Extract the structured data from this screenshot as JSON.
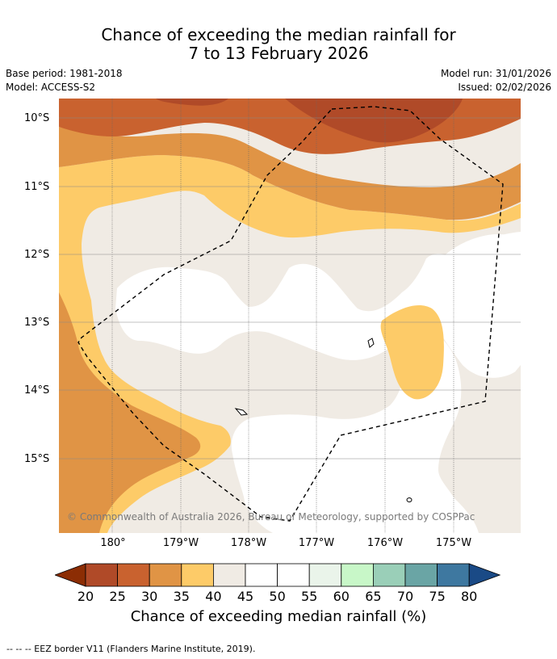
{
  "title": {
    "line1": "Chance of exceeding the median rainfall for",
    "line2": "7 to 13 February 2026"
  },
  "meta": {
    "base_period": "Base period: 1981-2018",
    "model": "Model: ACCESS-S2",
    "model_run": "Model run: 31/01/2026",
    "issued": "Issued: 02/02/2026"
  },
  "map": {
    "lat_labels": [
      "10°S",
      "11°S",
      "12°S",
      "13°S",
      "14°S",
      "15°S"
    ],
    "lon_labels": [
      "180°",
      "179°W",
      "178°W",
      "177°W",
      "176°W",
      "175°W"
    ],
    "copyright": "© Commonwealth of Australia 2026, Bureau of Meteorology, supported by COSPPac"
  },
  "colorbar": {
    "ticks": [
      "20",
      "25",
      "30",
      "35",
      "40",
      "45",
      "50",
      "55",
      "60",
      "65",
      "70",
      "75",
      "80"
    ],
    "colors": [
      "#8c2d04",
      "#b04a28",
      "#c9622f",
      "#e09445",
      "#fdcb68",
      "#f0ebe4",
      "#ffffff",
      "#ffffff",
      "#eaf4ea",
      "#c8f7c8",
      "#9acfb8",
      "#6aa5a5",
      "#3e78a0",
      "#1a4a86"
    ],
    "label": "Chance of exceeding median rainfall (%)"
  },
  "footer": "-- -- -- EEZ border V11 (Flanders Marine Institute, 2019)."
}
